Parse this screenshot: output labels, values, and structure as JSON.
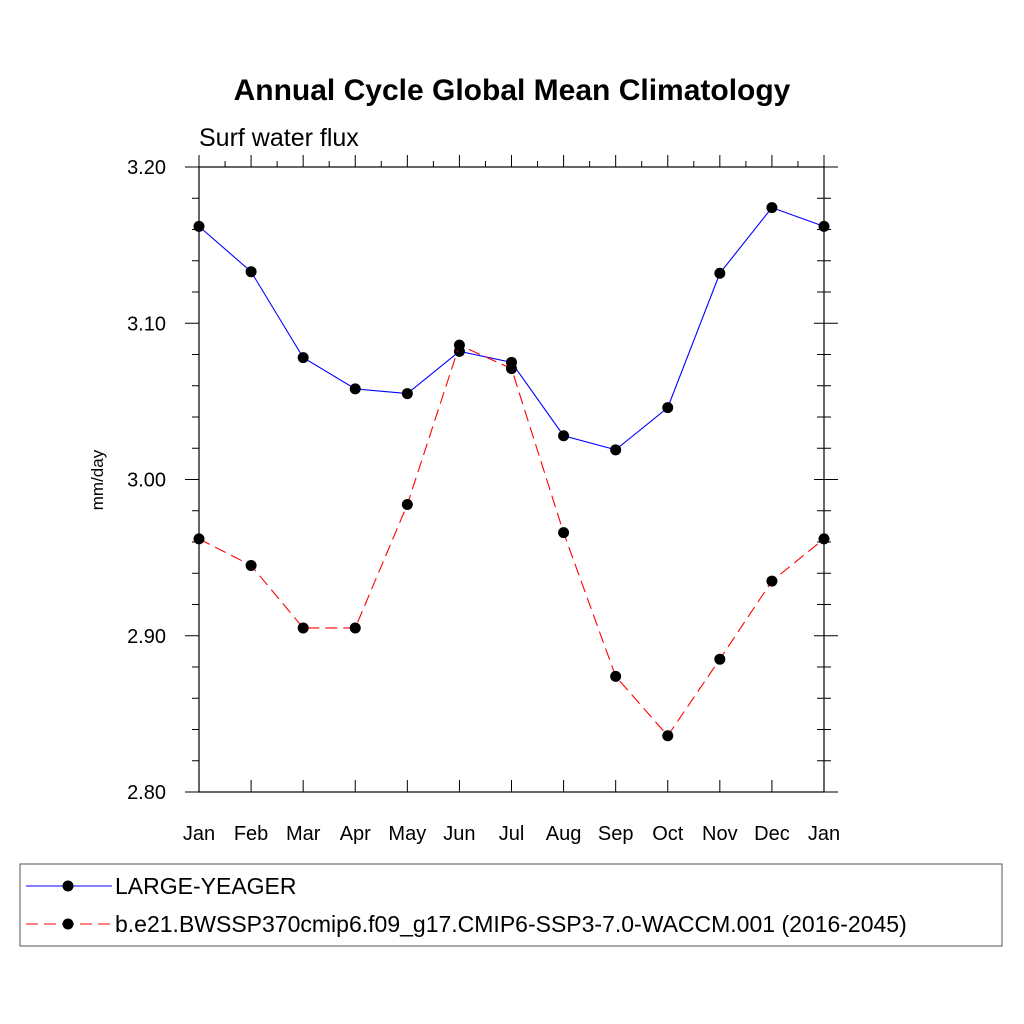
{
  "chart_data": {
    "type": "line",
    "title": "Annual Cycle Global Mean Climatology",
    "subtitle": "Surf water flux",
    "xlabel": "",
    "ylabel": "mm/day",
    "categories": [
      "Jan",
      "Feb",
      "Mar",
      "Apr",
      "May",
      "Jun",
      "Jul",
      "Aug",
      "Sep",
      "Oct",
      "Nov",
      "Dec",
      "Jan"
    ],
    "ylim": [
      2.8,
      3.2
    ],
    "yticks": [
      "2.80",
      "2.90",
      "3.00",
      "3.10",
      "3.20"
    ],
    "yticks_values": [
      2.8,
      2.9,
      3.0,
      3.1,
      3.2
    ],
    "grid": false,
    "legend_position": "bottom",
    "series": [
      {
        "name": "LARGE-YEAGER",
        "color": "#0000ff",
        "dash": "solid",
        "values": [
          3.162,
          3.133,
          3.078,
          3.058,
          3.055,
          3.082,
          3.075,
          3.028,
          3.019,
          3.046,
          3.132,
          3.174,
          3.162
        ]
      },
      {
        "name": "b.e21.BWSSP370cmip6.f09_g17.CMIP6-SSP3-7.0-WACCM.001 (2016-2045)",
        "color": "#ff0000",
        "dash": "dashed",
        "values": [
          2.962,
          2.945,
          2.905,
          2.905,
          2.984,
          3.086,
          3.071,
          2.966,
          2.874,
          2.836,
          2.885,
          2.935,
          2.962
        ]
      }
    ]
  }
}
